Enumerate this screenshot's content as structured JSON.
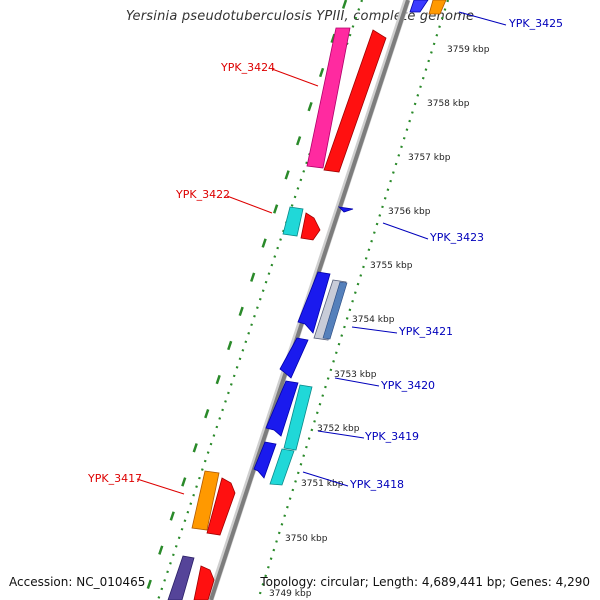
{
  "title": "Yersinia pseudotuberculosis YPIII, complete genome",
  "accession_text": "Accession: NC_010465",
  "topology_text": "Topology: circular; Length: 4,689,441 bp; Genes: 4,290",
  "kbp_ticks": [
    "3759 kbp",
    "3758 kbp",
    "3757 kbp",
    "3756 kbp",
    "3755 kbp",
    "3754 kbp",
    "3753 kbp",
    "3752 kbp",
    "3751 kbp",
    "3750 kbp",
    "3749 kbp"
  ],
  "gene_labels": {
    "reverse_strand": [
      "YPK_3424",
      "YPK_3422",
      "YPK_3417"
    ],
    "forward_strand": [
      "YPK_3425",
      "YPK_3423",
      "YPK_3421",
      "YPK_3420",
      "YPK_3419",
      "YPK_3418"
    ]
  },
  "colors": {
    "reverse_label": "#dd0000",
    "forward_label": "#0000bb",
    "backbone": "#8c8c8c",
    "tick_green": "#2a8a2a"
  }
}
